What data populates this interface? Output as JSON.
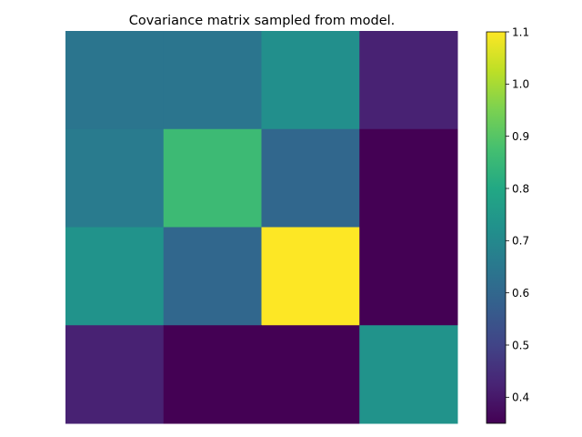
{
  "chart_data": {
    "type": "heatmap",
    "title": "Covariance matrix sampled from model.",
    "rows": 4,
    "cols": 4,
    "values": [
      [
        0.64,
        0.64,
        0.72,
        0.42
      ],
      [
        0.66,
        0.86,
        0.6,
        0.35
      ],
      [
        0.73,
        0.6,
        1.1,
        0.35
      ],
      [
        0.42,
        0.35,
        0.35,
        0.73
      ]
    ],
    "colorbar": {
      "min": 0.35,
      "max": 1.1,
      "colormap": "viridis",
      "ticks": [
        0.4,
        0.5,
        0.6,
        0.7,
        0.8,
        0.9,
        1.0,
        1.1
      ],
      "tick_labels": [
        "0.4",
        "0.5",
        "0.6",
        "0.7",
        "0.8",
        "0.9",
        "1.0",
        "1.1"
      ]
    },
    "axes_visible": false,
    "grid": false
  }
}
